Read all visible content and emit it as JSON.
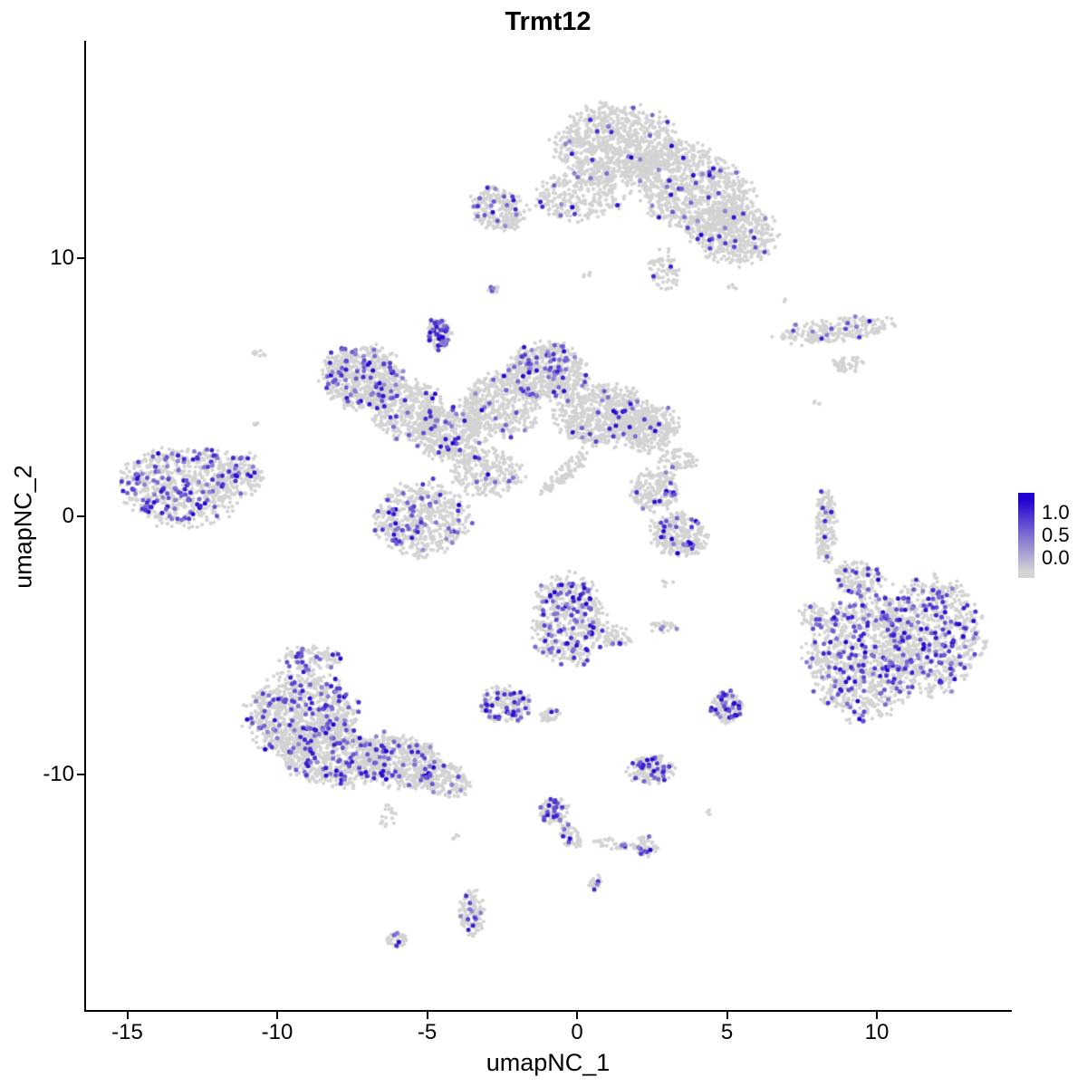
{
  "title": "Trmt12",
  "axes": {
    "xlabel": "umapNC_1",
    "ylabel": "umapNC_2",
    "x_ticks": [
      "-15",
      "-10",
      "-5",
      "0",
      "5",
      "10"
    ],
    "y_ticks": [
      "10",
      "0",
      "-10"
    ]
  },
  "legend": {
    "labels": [
      "1.0",
      "0.5",
      "0.0"
    ],
    "values": [
      1.0,
      0.5,
      0.0
    ]
  },
  "colors": {
    "base_point": "#d3d3d3",
    "expr_high": "#2000d0",
    "axis": "#000000",
    "background": "#ffffff"
  },
  "chart_data": {
    "type": "scatter",
    "title": "Trmt12",
    "xlabel": "umapNC_1",
    "ylabel": "umapNC_2",
    "x_domain": [
      -16.5,
      14.5
    ],
    "y_domain": [
      -17.5,
      16.5
    ],
    "grid": false,
    "legend_position": "right",
    "description": "UMAP feature plot of Trmt12 expression; grey cells non-expressing, blue-purple cells expressing (scale 0.0-1.0+)",
    "clusters": [
      {
        "name": "top-main-left",
        "cx": 1.3,
        "cy": 14.4,
        "rx": 2.0,
        "ry": 1.5,
        "rot": 0,
        "n": 850,
        "f": 0.03
      },
      {
        "name": "top-main-right",
        "cx": 3.8,
        "cy": 12.7,
        "rx": 2.3,
        "ry": 1.5,
        "rot": -35,
        "n": 950,
        "f": 0.035
      },
      {
        "name": "top-right-lobe",
        "cx": 5.2,
        "cy": 10.9,
        "rx": 1.4,
        "ry": 1.2,
        "rot": 0,
        "n": 420,
        "f": 0.05
      },
      {
        "name": "top-left-arm",
        "cx": -2.6,
        "cy": 11.9,
        "rx": 1.0,
        "ry": 0.8,
        "rot": -20,
        "n": 240,
        "f": 0.06
      },
      {
        "name": "top-bridge",
        "cx": 0.1,
        "cy": 12.4,
        "rx": 1.5,
        "ry": 0.9,
        "rot": 0,
        "n": 260,
        "f": 0.02
      },
      {
        "name": "top-tail",
        "cx": 2.9,
        "cy": 9.5,
        "rx": 0.5,
        "ry": 0.8,
        "rot": 0,
        "n": 70,
        "f": 0.03
      },
      {
        "name": "single-dot-a",
        "cx": -2.8,
        "cy": 8.8,
        "rx": 0.18,
        "ry": 0.15,
        "rot": 0,
        "n": 12,
        "f": 0.3
      },
      {
        "name": "right-strip",
        "cx": 8.6,
        "cy": 7.2,
        "rx": 1.9,
        "ry": 0.45,
        "rot": 8,
        "n": 210,
        "f": 0.05
      },
      {
        "name": "right-strip-sub",
        "cx": 9.0,
        "cy": 5.9,
        "rx": 0.5,
        "ry": 0.3,
        "rot": 0,
        "n": 45,
        "f": 0.03
      },
      {
        "name": "mid-left-upper",
        "cx": -7.2,
        "cy": 5.4,
        "rx": 1.3,
        "ry": 1.2,
        "rot": 0,
        "n": 560,
        "f": 0.13
      },
      {
        "name": "mid-left-mid",
        "cx": -5.6,
        "cy": 4.1,
        "rx": 1.3,
        "ry": 1.1,
        "rot": -25,
        "n": 430,
        "f": 0.05
      },
      {
        "name": "mid-left-lower",
        "cx": -4.2,
        "cy": 3.2,
        "rx": 1.2,
        "ry": 1.0,
        "rot": 0,
        "n": 400,
        "f": 0.04
      },
      {
        "name": "mid-center",
        "cx": -2.6,
        "cy": 4.3,
        "rx": 1.3,
        "ry": 1.2,
        "rot": 0,
        "n": 430,
        "f": 0.04
      },
      {
        "name": "mid-upper-blob",
        "cx": -1.0,
        "cy": 5.6,
        "rx": 1.3,
        "ry": 1.1,
        "rot": 0,
        "n": 560,
        "f": 0.11
      },
      {
        "name": "mid-right-blob",
        "cx": 0.9,
        "cy": 3.9,
        "rx": 1.6,
        "ry": 1.2,
        "rot": 0,
        "n": 650,
        "f": 0.03
      },
      {
        "name": "mid-right-lobe",
        "cx": 2.4,
        "cy": 3.4,
        "rx": 1.0,
        "ry": 0.9,
        "rot": 0,
        "n": 280,
        "f": 0.03
      },
      {
        "name": "mid-top-spike",
        "cx": -4.6,
        "cy": 7.1,
        "rx": 0.4,
        "ry": 0.6,
        "rot": 0,
        "n": 120,
        "f": 0.3
      },
      {
        "name": "mid-bridge-down",
        "cx": -3.0,
        "cy": 1.7,
        "rx": 1.2,
        "ry": 0.9,
        "rot": 0,
        "n": 240,
        "f": 0.05
      },
      {
        "name": "mid-right-tail",
        "cx": 3.4,
        "cy": 2.2,
        "rx": 0.6,
        "ry": 0.4,
        "rot": 0,
        "n": 60,
        "f": 0.02
      },
      {
        "name": "mid-streak",
        "cx": -0.4,
        "cy": 1.7,
        "rx": 1.1,
        "ry": 0.28,
        "rot": 45,
        "n": 80,
        "f": 0.03
      },
      {
        "name": "far-left-main",
        "cx": -13.2,
        "cy": 1.2,
        "rx": 2.0,
        "ry": 1.5,
        "rot": 0,
        "n": 650,
        "f": 0.18
      },
      {
        "name": "far-left-lobe",
        "cx": -11.3,
        "cy": 1.6,
        "rx": 0.8,
        "ry": 0.9,
        "rot": 0,
        "n": 150,
        "f": 0.12
      },
      {
        "name": "left-single-dot",
        "cx": -10.6,
        "cy": 6.3,
        "rx": 0.2,
        "ry": 0.15,
        "rot": 0,
        "n": 8,
        "f": 0
      },
      {
        "name": "center-left-blob",
        "cx": -5.2,
        "cy": -0.1,
        "rx": 1.6,
        "ry": 1.4,
        "rot": 0,
        "n": 520,
        "f": 0.1
      },
      {
        "name": "center-small-upper",
        "cx": 2.6,
        "cy": 1.0,
        "rx": 0.8,
        "ry": 0.8,
        "rot": 0,
        "n": 190,
        "f": 0.04
      },
      {
        "name": "center-small-lower",
        "cx": 3.4,
        "cy": -0.7,
        "rx": 1.0,
        "ry": 0.8,
        "rot": -15,
        "n": 260,
        "f": 0.09
      },
      {
        "name": "right-sliver",
        "cx": 8.3,
        "cy": -0.4,
        "rx": 0.35,
        "ry": 1.5,
        "rot": 0,
        "n": 170,
        "f": 0.02
      },
      {
        "name": "right-main-left",
        "cx": 9.5,
        "cy": -5.5,
        "rx": 1.8,
        "ry": 2.3,
        "rot": 0,
        "n": 850,
        "f": 0.2
      },
      {
        "name": "right-main-right",
        "cx": 11.8,
        "cy": -4.6,
        "rx": 1.8,
        "ry": 2.2,
        "rot": 0,
        "n": 800,
        "f": 0.15
      },
      {
        "name": "right-main-top",
        "cx": 9.4,
        "cy": -2.4,
        "rx": 0.8,
        "ry": 0.7,
        "rot": 0,
        "n": 140,
        "f": 0.1
      },
      {
        "name": "right-main-arm",
        "cx": 7.9,
        "cy": -3.9,
        "rx": 0.5,
        "ry": 0.5,
        "rot": 0,
        "n": 60,
        "f": 0.08
      },
      {
        "name": "center-mid",
        "cx": -0.3,
        "cy": -4.0,
        "rx": 1.2,
        "ry": 1.7,
        "rot": 0,
        "n": 520,
        "f": 0.18
      },
      {
        "name": "center-mid-arm",
        "cx": 1.3,
        "cy": -4.7,
        "rx": 0.5,
        "ry": 0.4,
        "rot": 0,
        "n": 60,
        "f": 0.12
      },
      {
        "name": "center-mid-dots",
        "cx": 2.9,
        "cy": -4.3,
        "rx": 0.5,
        "ry": 0.25,
        "rot": 0,
        "n": 22,
        "f": 0.05
      },
      {
        "name": "small-pair-left",
        "cx": -2.4,
        "cy": -7.3,
        "rx": 0.8,
        "ry": 0.7,
        "rot": 0,
        "n": 190,
        "f": 0.16
      },
      {
        "name": "small-pair-right-dot",
        "cx": -0.9,
        "cy": -7.7,
        "rx": 0.35,
        "ry": 0.3,
        "rot": 0,
        "n": 35,
        "f": 0.04
      },
      {
        "name": "small-right-blob",
        "cx": 5.0,
        "cy": -7.4,
        "rx": 0.5,
        "ry": 0.6,
        "rot": 0,
        "n": 120,
        "f": 0.22
      },
      {
        "name": "bottom-left-core",
        "cx": -9.2,
        "cy": -7.7,
        "rx": 1.8,
        "ry": 1.6,
        "rot": 0,
        "n": 800,
        "f": 0.13
      },
      {
        "name": "bottom-left-lower",
        "cx": -8.2,
        "cy": -9.2,
        "rx": 1.9,
        "ry": 1.2,
        "rot": -15,
        "n": 650,
        "f": 0.12
      },
      {
        "name": "bottom-left-tail",
        "cx": -5.9,
        "cy": -9.5,
        "rx": 1.4,
        "ry": 1.0,
        "rot": -20,
        "n": 420,
        "f": 0.1
      },
      {
        "name": "bottom-left-tip",
        "cx": -4.4,
        "cy": -10.2,
        "rx": 0.9,
        "ry": 0.6,
        "rot": -20,
        "n": 170,
        "f": 0.08
      },
      {
        "name": "bottom-left-top",
        "cx": -8.9,
        "cy": -5.5,
        "rx": 1.0,
        "ry": 0.5,
        "rot": 0,
        "n": 110,
        "f": 0.1
      },
      {
        "name": "bottom-left-drip",
        "cx": -6.3,
        "cy": -11.6,
        "rx": 0.3,
        "ry": 0.5,
        "rot": 0,
        "n": 18,
        "f": 0.05
      },
      {
        "name": "bottom-small",
        "cx": 2.5,
        "cy": -9.8,
        "rx": 0.8,
        "ry": 0.55,
        "rot": 0,
        "n": 150,
        "f": 0.25
      },
      {
        "name": "chain-top",
        "cx": -0.8,
        "cy": -11.4,
        "rx": 0.5,
        "ry": 0.5,
        "rot": 0,
        "n": 90,
        "f": 0.3
      },
      {
        "name": "chain-mid",
        "cx": -0.2,
        "cy": -12.4,
        "rx": 0.6,
        "ry": 0.3,
        "rot": -60,
        "n": 60,
        "f": 0.1
      },
      {
        "name": "chain-right",
        "cx": 2.3,
        "cy": -12.8,
        "rx": 0.45,
        "ry": 0.4,
        "rot": 0,
        "n": 55,
        "f": 0.15
      },
      {
        "name": "chain-link",
        "cx": 1.1,
        "cy": -12.7,
        "rx": 0.7,
        "ry": 0.22,
        "rot": -10,
        "n": 30,
        "f": 0.05
      },
      {
        "name": "tiny-below-chain",
        "cx": 0.6,
        "cy": -14.2,
        "rx": 0.25,
        "ry": 0.3,
        "rot": 0,
        "n": 25,
        "f": 0.1
      },
      {
        "name": "bottom-column",
        "cx": -3.5,
        "cy": -15.4,
        "rx": 0.4,
        "ry": 0.9,
        "rot": 0,
        "n": 110,
        "f": 0.12
      },
      {
        "name": "bottom-tiny",
        "cx": -6.0,
        "cy": -16.4,
        "rx": 0.35,
        "ry": 0.3,
        "rot": 0,
        "n": 45,
        "f": 0.18
      },
      {
        "name": "stray-1",
        "cx": 5.2,
        "cy": 8.9,
        "rx": 0.15,
        "ry": 0.12,
        "rot": 0,
        "n": 5,
        "f": 0
      },
      {
        "name": "stray-2",
        "cx": 8.0,
        "cy": 4.4,
        "rx": 0.15,
        "ry": 0.12,
        "rot": 0,
        "n": 4,
        "f": 0
      },
      {
        "name": "stray-3",
        "cx": -10.7,
        "cy": 3.6,
        "rx": 0.15,
        "ry": 0.12,
        "rot": 0,
        "n": 4,
        "f": 0
      },
      {
        "name": "stray-4",
        "cx": 0.3,
        "cy": 9.4,
        "rx": 0.2,
        "ry": 0.15,
        "rot": 0,
        "n": 6,
        "f": 0
      },
      {
        "name": "stray-5",
        "cx": 3.0,
        "cy": -2.6,
        "rx": 0.2,
        "ry": 0.15,
        "rot": 0,
        "n": 5,
        "f": 0
      },
      {
        "name": "stray-6",
        "cx": -4.1,
        "cy": -12.4,
        "rx": 0.15,
        "ry": 0.12,
        "rot": 0,
        "n": 4,
        "f": 0
      },
      {
        "name": "stray-7",
        "cx": 4.4,
        "cy": -11.5,
        "rx": 0.15,
        "ry": 0.12,
        "rot": 0,
        "n": 4,
        "f": 0
      },
      {
        "name": "stray-8",
        "cx": 6.9,
        "cy": 8.4,
        "rx": 0.12,
        "ry": 0.1,
        "rot": 0,
        "n": 3,
        "f": 0
      }
    ]
  }
}
